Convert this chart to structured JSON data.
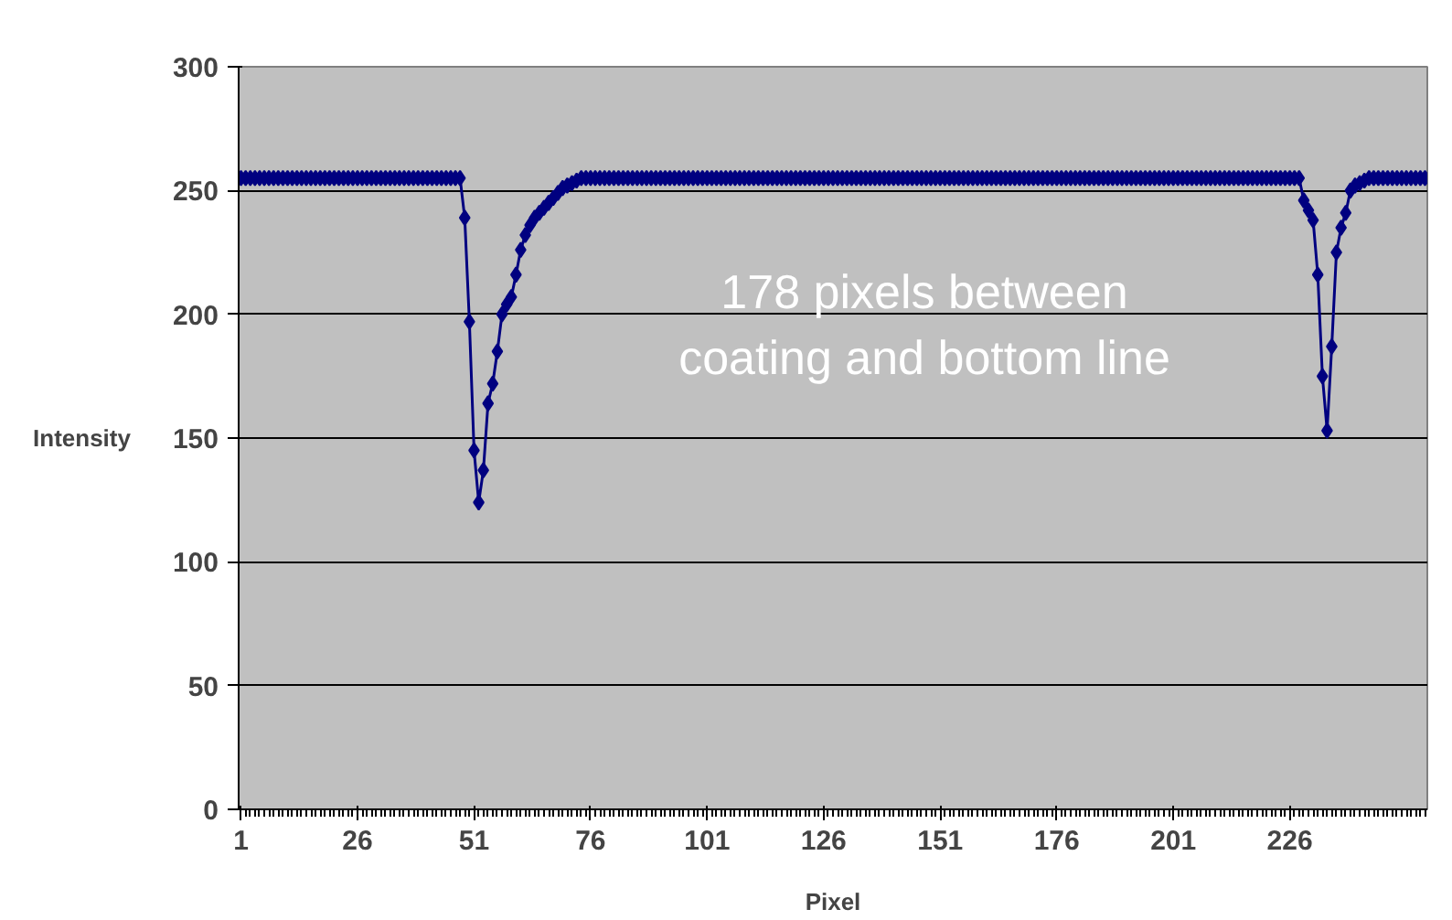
{
  "chart_data": {
    "type": "line",
    "xlabel": "Pixel",
    "ylabel": "Intensity",
    "annotations": [
      "178 pixels between coating and bottom line"
    ],
    "x": [
      1,
      2,
      3,
      4,
      5,
      6,
      7,
      8,
      9,
      10,
      11,
      12,
      13,
      14,
      15,
      16,
      17,
      18,
      19,
      20,
      21,
      22,
      23,
      24,
      25,
      26,
      27,
      28,
      29,
      30,
      31,
      32,
      33,
      34,
      35,
      36,
      37,
      38,
      39,
      40,
      41,
      42,
      43,
      44,
      45,
      46,
      47,
      48,
      49,
      50,
      51,
      52,
      53,
      54,
      55,
      56,
      57,
      58,
      59,
      60,
      61,
      62,
      63,
      64,
      65,
      66,
      67,
      68,
      69,
      70,
      71,
      72,
      73,
      74,
      75,
      76,
      77,
      78,
      79,
      80,
      81,
      82,
      83,
      84,
      85,
      86,
      87,
      88,
      89,
      90,
      91,
      92,
      93,
      94,
      95,
      96,
      97,
      98,
      99,
      100,
      101,
      102,
      103,
      104,
      105,
      106,
      107,
      108,
      109,
      110,
      111,
      112,
      113,
      114,
      115,
      116,
      117,
      118,
      119,
      120,
      121,
      122,
      123,
      124,
      125,
      126,
      127,
      128,
      129,
      130,
      131,
      132,
      133,
      134,
      135,
      136,
      137,
      138,
      139,
      140,
      141,
      142,
      143,
      144,
      145,
      146,
      147,
      148,
      149,
      150,
      151,
      152,
      153,
      154,
      155,
      156,
      157,
      158,
      159,
      160,
      161,
      162,
      163,
      164,
      165,
      166,
      167,
      168,
      169,
      170,
      171,
      172,
      173,
      174,
      175,
      176,
      177,
      178,
      179,
      180,
      181,
      182,
      183,
      184,
      185,
      186,
      187,
      188,
      189,
      190,
      191,
      192,
      193,
      194,
      195,
      196,
      197,
      198,
      199,
      200,
      201,
      202,
      203,
      204,
      205,
      206,
      207,
      208,
      209,
      210,
      211,
      212,
      213,
      214,
      215,
      216,
      217,
      218,
      219,
      220,
      221,
      222,
      223,
      224,
      225,
      226,
      227,
      228,
      229,
      230,
      231,
      232,
      233,
      234,
      235,
      236,
      237,
      238,
      239,
      240,
      241,
      242,
      243,
      244,
      245,
      246,
      247,
      248,
      249,
      250,
      251,
      252,
      253,
      254,
      255
    ],
    "series": [
      {
        "color": "#000080",
        "values": [
          255,
          255,
          255,
          255,
          255,
          255,
          255,
          255,
          255,
          255,
          255,
          255,
          255,
          255,
          255,
          255,
          255,
          255,
          255,
          255,
          255,
          255,
          255,
          255,
          255,
          255,
          255,
          255,
          255,
          255,
          255,
          255,
          255,
          255,
          255,
          255,
          255,
          255,
          255,
          255,
          255,
          255,
          255,
          255,
          255,
          255,
          255,
          255,
          239,
          197,
          145,
          124,
          137,
          164,
          172,
          185,
          200,
          204,
          207,
          216,
          226,
          232,
          236,
          239,
          241,
          243,
          245,
          247,
          249,
          251,
          252,
          253,
          254,
          255,
          255,
          255,
          255,
          255,
          255,
          255,
          255,
          255,
          255,
          255,
          255,
          255,
          255,
          255,
          255,
          255,
          255,
          255,
          255,
          255,
          255,
          255,
          255,
          255,
          255,
          255,
          255,
          255,
          255,
          255,
          255,
          255,
          255,
          255,
          255,
          255,
          255,
          255,
          255,
          255,
          255,
          255,
          255,
          255,
          255,
          255,
          255,
          255,
          255,
          255,
          255,
          255,
          255,
          255,
          255,
          255,
          255,
          255,
          255,
          255,
          255,
          255,
          255,
          255,
          255,
          255,
          255,
          255,
          255,
          255,
          255,
          255,
          255,
          255,
          255,
          255,
          255,
          255,
          255,
          255,
          255,
          255,
          255,
          255,
          255,
          255,
          255,
          255,
          255,
          255,
          255,
          255,
          255,
          255,
          255,
          255,
          255,
          255,
          255,
          255,
          255,
          255,
          255,
          255,
          255,
          255,
          255,
          255,
          255,
          255,
          255,
          255,
          255,
          255,
          255,
          255,
          255,
          255,
          255,
          255,
          255,
          255,
          255,
          255,
          255,
          255,
          255,
          255,
          255,
          255,
          255,
          255,
          255,
          255,
          255,
          255,
          255,
          255,
          255,
          255,
          255,
          255,
          255,
          255,
          255,
          255,
          255,
          255,
          255,
          255,
          255,
          255,
          255,
          255,
          246,
          242,
          238,
          216,
          175,
          153,
          187,
          225,
          235,
          241,
          250,
          252,
          253,
          254,
          255,
          255,
          255,
          255,
          255,
          255,
          255,
          255,
          255,
          255,
          255,
          255,
          255
        ]
      }
    ],
    "xlim": [
      0.5,
      255.5
    ],
    "xticks": [
      1,
      26,
      51,
      76,
      101,
      126,
      151,
      176,
      201,
      226
    ],
    "ylim": [
      0,
      300
    ],
    "yticks": [
      0,
      50,
      100,
      150,
      200,
      250,
      300
    ],
    "grid": "y",
    "marker": "diamond",
    "line_style": "solid"
  }
}
